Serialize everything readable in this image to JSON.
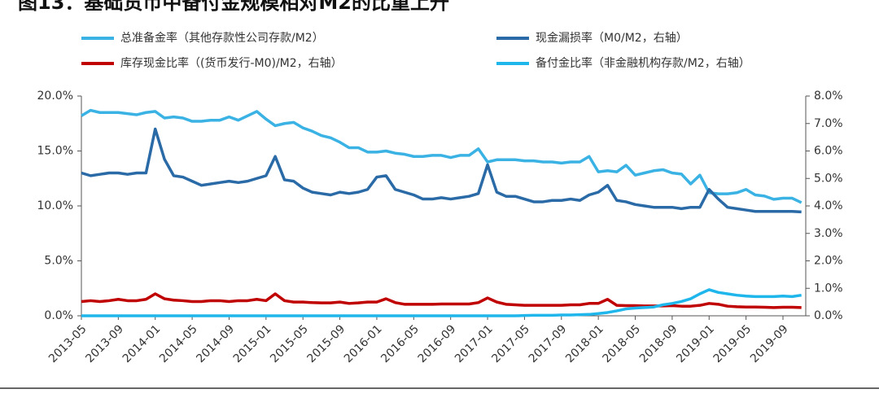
{
  "chart_data": {
    "type": "line",
    "title": "图13：基础货币中备付金规模相对M2的比重上升",
    "categories": [
      "2013-05",
      null,
      null,
      null,
      "2013-09",
      null,
      null,
      null,
      "2014-01",
      null,
      null,
      null,
      "2014-05",
      null,
      null,
      null,
      "2014-09",
      null,
      null,
      null,
      "2015-01",
      null,
      null,
      null,
      "2015-05",
      null,
      null,
      null,
      "2015-09",
      null,
      null,
      null,
      "2016-01",
      null,
      null,
      null,
      "2016-05",
      null,
      null,
      null,
      "2016-09",
      null,
      null,
      null,
      "2017-01",
      null,
      null,
      null,
      "2017-05",
      null,
      null,
      null,
      "2017-09",
      null,
      null,
      null,
      "2018-01",
      null,
      null,
      null,
      "2018-05",
      null,
      null,
      null,
      "2018-09",
      null,
      null,
      null,
      "2019-01",
      null,
      null,
      null,
      "2019-05",
      null,
      null,
      null,
      "2019-09",
      null,
      null
    ],
    "ylim": [
      0,
      20
    ],
    "yticks": [
      {
        "value": 0,
        "label": "0.0%"
      },
      {
        "value": 5,
        "label": "5.0%"
      },
      {
        "value": 10,
        "label": "10.0%"
      },
      {
        "value": 15,
        "label": "15.0%"
      },
      {
        "value": 20,
        "label": "20.0%"
      }
    ],
    "y2lim": [
      0,
      8
    ],
    "y2ticks": [
      {
        "value": 0,
        "label": "0.0%"
      },
      {
        "value": 1,
        "label": "1.0%"
      },
      {
        "value": 2,
        "label": "2.0%"
      },
      {
        "value": 3,
        "label": "3.0%"
      },
      {
        "value": 4,
        "label": "4.0%"
      },
      {
        "value": 5,
        "label": "5.0%"
      },
      {
        "value": 6,
        "label": "6.0%"
      },
      {
        "value": 7,
        "label": "7.0%"
      },
      {
        "value": 8,
        "label": "8.0%"
      }
    ],
    "series": [
      {
        "name": "总准备金率（其他存款性公司存款/M2）",
        "color": "#3ab2e4",
        "values": [
          18.2,
          18.7,
          18.5,
          18.5,
          18.5,
          18.4,
          18.3,
          18.5,
          18.6,
          18.0,
          18.1,
          18.0,
          17.7,
          17.7,
          17.8,
          17.8,
          18.1,
          17.8,
          18.2,
          18.6,
          17.9,
          17.3,
          17.5,
          17.6,
          17.1,
          16.8,
          16.4,
          16.2,
          15.8,
          15.3,
          15.3,
          14.9,
          14.9,
          15.0,
          14.8,
          14.7,
          14.5,
          14.5,
          14.6,
          14.6,
          14.4,
          14.6,
          14.6,
          15.2,
          14.0,
          14.2,
          14.2,
          14.2,
          14.1,
          14.1,
          14.0,
          14.0,
          13.9,
          14.0,
          14.0,
          14.5,
          13.1,
          13.2,
          13.1,
          13.7,
          12.8,
          13.0,
          13.2,
          13.3,
          13.0,
          12.9,
          12.0,
          12.8,
          11.2,
          11.1,
          11.1,
          11.2,
          11.5,
          11.0,
          10.9,
          10.6,
          10.7,
          10.7,
          10.3
        ]
      },
      {
        "name": "现金漏损率（M0/M2，右轴）",
        "color": "#2a6aa6",
        "axis": "y2",
        "values": [
          5.2,
          5.1,
          5.15,
          5.2,
          5.2,
          5.15,
          5.2,
          5.2,
          6.8,
          5.7,
          5.1,
          5.05,
          4.9,
          4.75,
          4.8,
          4.85,
          4.9,
          4.85,
          4.9,
          5.0,
          5.1,
          5.8,
          4.95,
          4.9,
          4.65,
          4.5,
          4.45,
          4.4,
          4.5,
          4.45,
          4.5,
          4.6,
          5.05,
          5.1,
          4.6,
          4.5,
          4.4,
          4.25,
          4.25,
          4.3,
          4.25,
          4.3,
          4.35,
          4.45,
          5.5,
          4.5,
          4.35,
          4.35,
          4.25,
          4.15,
          4.15,
          4.2,
          4.2,
          4.25,
          4.2,
          4.4,
          4.5,
          4.75,
          4.2,
          4.15,
          4.05,
          4.0,
          3.95,
          3.95,
          3.95,
          3.9,
          3.95,
          3.95,
          4.6,
          4.25,
          3.95,
          3.9,
          3.85,
          3.8,
          3.8,
          3.8,
          3.8,
          3.8,
          3.78
        ]
      },
      {
        "name": "库存现金比率（(货币发行-M0)/M2，右轴）",
        "color": "#c00000",
        "axis": "y2",
        "values": [
          0.52,
          0.55,
          0.52,
          0.55,
          0.6,
          0.55,
          0.55,
          0.6,
          0.8,
          0.62,
          0.57,
          0.55,
          0.52,
          0.52,
          0.55,
          0.55,
          0.52,
          0.55,
          0.55,
          0.6,
          0.55,
          0.8,
          0.55,
          0.5,
          0.5,
          0.48,
          0.47,
          0.47,
          0.5,
          0.45,
          0.47,
          0.5,
          0.5,
          0.62,
          0.48,
          0.42,
          0.42,
          0.42,
          0.42,
          0.43,
          0.43,
          0.43,
          0.43,
          0.48,
          0.65,
          0.5,
          0.42,
          0.4,
          0.38,
          0.38,
          0.38,
          0.38,
          0.38,
          0.4,
          0.4,
          0.45,
          0.45,
          0.6,
          0.38,
          0.37,
          0.37,
          0.36,
          0.36,
          0.36,
          0.37,
          0.35,
          0.35,
          0.38,
          0.45,
          0.42,
          0.35,
          0.33,
          0.32,
          0.32,
          0.31,
          0.3,
          0.31,
          0.31,
          0.3
        ]
      },
      {
        "name": "备付金比率（非金融机构存款/M2，右轴）",
        "color": "#1fb6ec",
        "axis": "y2",
        "values": [
          0,
          0,
          0,
          0,
          0,
          0,
          0,
          0,
          0,
          0,
          0,
          0,
          0,
          0,
          0,
          0,
          0,
          0,
          0,
          0,
          0,
          0,
          0,
          0,
          0,
          0,
          0,
          0,
          0,
          0,
          0,
          0,
          0,
          0,
          0,
          0,
          0,
          0,
          0,
          0,
          0,
          0,
          0,
          0,
          0,
          0,
          0,
          0,
          0.01,
          0.02,
          0.02,
          0.02,
          0.03,
          0.03,
          0.04,
          0.05,
          0.08,
          0.12,
          0.18,
          0.25,
          0.28,
          0.3,
          0.32,
          0.4,
          0.45,
          0.52,
          0.62,
          0.8,
          0.95,
          0.85,
          0.8,
          0.75,
          0.72,
          0.7,
          0.7,
          0.7,
          0.72,
          0.7,
          0.75
        ]
      }
    ]
  }
}
